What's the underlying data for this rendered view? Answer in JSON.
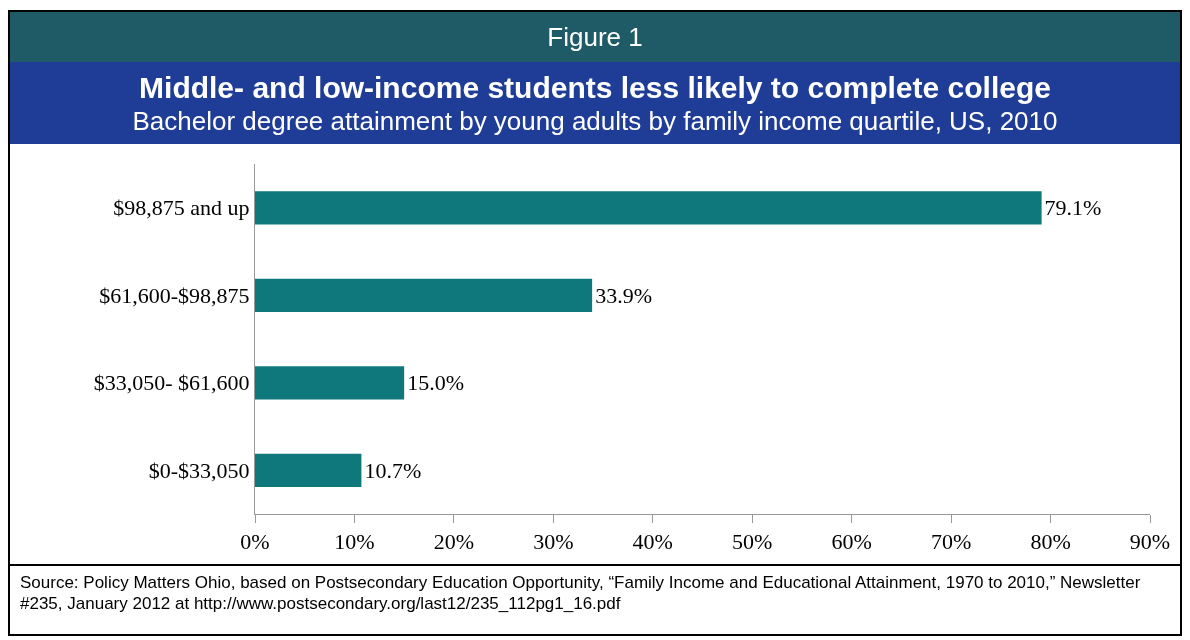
{
  "chart_data": {
    "type": "bar",
    "orientation": "horizontal",
    "title": "Middle- and low-income students less likely to complete college",
    "subtitle": "Bachelor degree attainment by young adults by family income quartile, US, 2010",
    "annotations": [
      "Figure 1",
      "Source:  Policy Matters Ohio, based on Postsecondary Education Opportunity, “Family Income and Educational Attainment, 1970 to 2010,” Newsletter #235, January 2012 at http://www.postsecondary.org/last12/235_112pg1_16.pdf"
    ],
    "categories": [
      "$98,875 and up",
      "$61,600-$98,875",
      "$33,050- $61,600",
      "$0-$33,050"
    ],
    "values": [
      79.1,
      33.9,
      15.0,
      10.7
    ],
    "value_labels": [
      "79.1%",
      "33.9%",
      "15.0%",
      "10.7%"
    ],
    "color": "#0e787c",
    "xlim": [
      0,
      90
    ],
    "xticks": [
      {
        "value": 0,
        "label": "0%"
      },
      {
        "value": 10,
        "label": "10%"
      },
      {
        "value": 20,
        "label": "20%"
      },
      {
        "value": 30,
        "label": "30%"
      },
      {
        "value": 40,
        "label": "40%"
      },
      {
        "value": 50,
        "label": "50%"
      },
      {
        "value": 60,
        "label": "60%"
      },
      {
        "value": 70,
        "label": "70%"
      },
      {
        "value": 80,
        "label": "80%"
      },
      {
        "value": 90,
        "label": "90%"
      }
    ],
    "grid": false,
    "legend": false
  }
}
